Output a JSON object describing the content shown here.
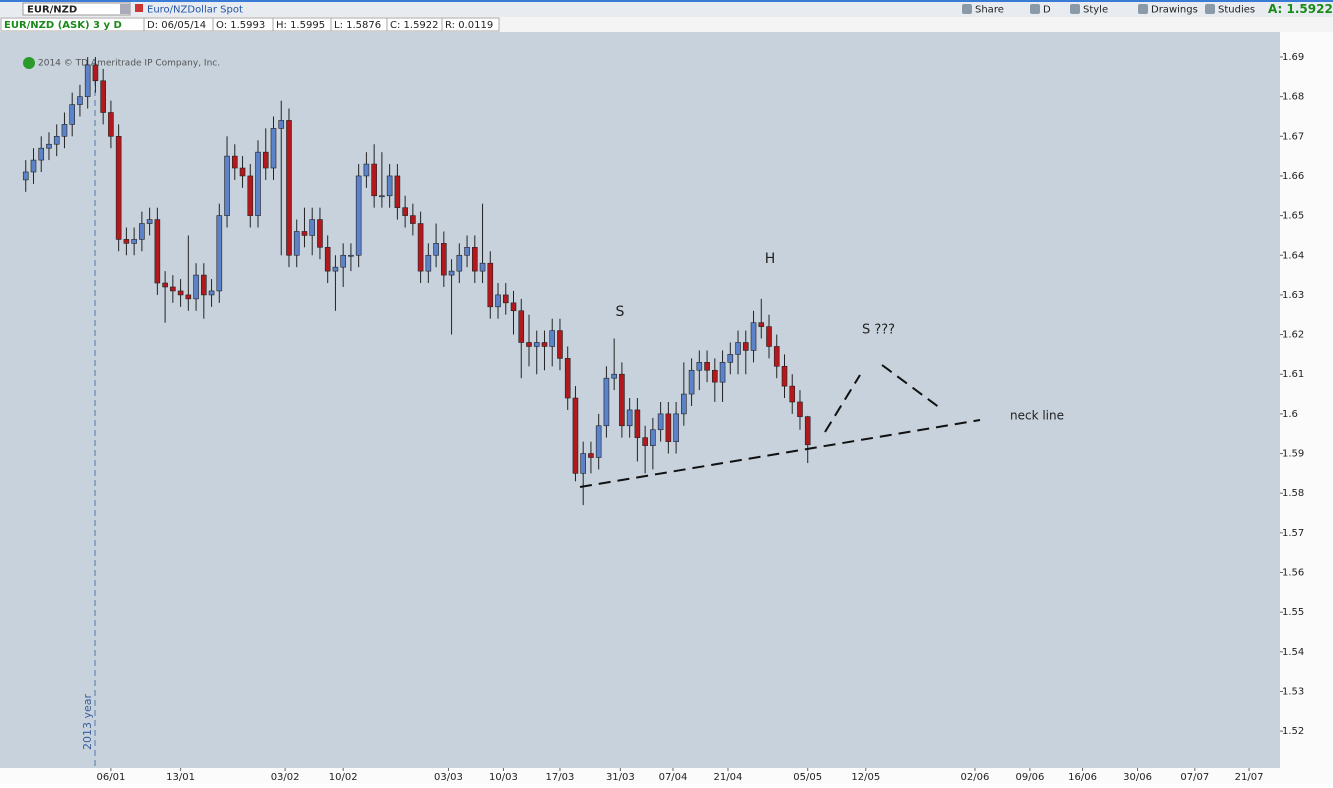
{
  "toolbar": {
    "symbol": "EUR/NZD",
    "description": "Euro/NZDollar Spot",
    "buttons": [
      "Share",
      "D",
      "Style",
      "Drawings",
      "Studies"
    ],
    "ask": "A: 1.5922"
  },
  "info_bar": [
    "EUR/NZD (ASK) 3 y D",
    "D: 06/05/14",
    "O: 1.5993",
    "H: 1.5995",
    "L: 1.5876",
    "C: 1.5922",
    "R: 0.0119"
  ],
  "copyright": "2014 © TD Ameritrade IP Company, Inc.",
  "chart_data": {
    "type": "candlestick",
    "up_color": "#5c82c9",
    "down_color": "#b3191c",
    "open": [
      1.659,
      1.661,
      1.664,
      1.667,
      1.668,
      1.67,
      1.673,
      1.678,
      1.68,
      1.688,
      1.684,
      1.676,
      1.67,
      1.644,
      1.643,
      1.644,
      1.648,
      1.649,
      1.633,
      1.632,
      1.631,
      1.63,
      1.629,
      1.635,
      1.63,
      1.631,
      1.65,
      1.665,
      1.662,
      1.66,
      1.65,
      1.666,
      1.662,
      1.672,
      1.674,
      1.64,
      1.646,
      1.645,
      1.649,
      1.642,
      1.636,
      1.637,
      1.64,
      1.64,
      1.66,
      1.663,
      1.655,
      1.655,
      1.66,
      1.652,
      1.65,
      1.648,
      1.636,
      1.64,
      1.643,
      1.635,
      1.636,
      1.64,
      1.642,
      1.636,
      1.638,
      1.627,
      1.63,
      1.628,
      1.626,
      1.618,
      1.617,
      1.618,
      1.617,
      1.621,
      1.614,
      1.604,
      1.585,
      1.59,
      1.589,
      1.597,
      1.609,
      1.61,
      1.597,
      1.601,
      1.594,
      1.592,
      1.596,
      1.6,
      1.593,
      1.6,
      1.605,
      1.611,
      1.613,
      1.611,
      1.608,
      1.613,
      1.615,
      1.618,
      1.616,
      1.623,
      1.622,
      1.617,
      1.612,
      1.607,
      1.603,
      1.5993
    ],
    "high": [
      1.664,
      1.667,
      1.67,
      1.671,
      1.673,
      1.676,
      1.681,
      1.683,
      1.69,
      1.69,
      1.687,
      1.679,
      1.673,
      1.647,
      1.647,
      1.651,
      1.652,
      1.652,
      1.636,
      1.635,
      1.634,
      1.645,
      1.638,
      1.638,
      1.634,
      1.653,
      1.67,
      1.668,
      1.665,
      1.663,
      1.669,
      1.672,
      1.675,
      1.679,
      1.677,
      1.649,
      1.652,
      1.652,
      1.652,
      1.645,
      1.64,
      1.643,
      1.643,
      1.663,
      1.666,
      1.668,
      1.666,
      1.663,
      1.663,
      1.655,
      1.653,
      1.651,
      1.643,
      1.648,
      1.646,
      1.639,
      1.643,
      1.645,
      1.645,
      1.653,
      1.641,
      1.633,
      1.633,
      1.631,
      1.629,
      1.625,
      1.621,
      1.621,
      1.624,
      1.624,
      1.617,
      1.607,
      1.593,
      1.593,
      1.6,
      1.612,
      1.619,
      1.613,
      1.604,
      1.604,
      1.597,
      1.599,
      1.603,
      1.603,
      1.603,
      1.613,
      1.614,
      1.616,
      1.616,
      1.614,
      1.616,
      1.618,
      1.621,
      1.621,
      1.626,
      1.629,
      1.625,
      1.62,
      1.615,
      1.61,
      1.606,
      1.5995
    ],
    "low": [
      1.656,
      1.658,
      1.661,
      1.664,
      1.665,
      1.667,
      1.67,
      1.675,
      1.677,
      1.681,
      1.673,
      1.667,
      1.641,
      1.64,
      1.64,
      1.641,
      1.645,
      1.63,
      1.623,
      1.628,
      1.627,
      1.626,
      1.626,
      1.624,
      1.627,
      1.628,
      1.647,
      1.659,
      1.657,
      1.647,
      1.647,
      1.659,
      1.659,
      1.64,
      1.637,
      1.637,
      1.642,
      1.64,
      1.639,
      1.633,
      1.626,
      1.632,
      1.636,
      1.637,
      1.657,
      1.652,
      1.652,
      1.652,
      1.649,
      1.647,
      1.645,
      1.633,
      1.633,
      1.637,
      1.632,
      1.62,
      1.633,
      1.637,
      1.633,
      1.633,
      1.624,
      1.624,
      1.625,
      1.62,
      1.609,
      1.612,
      1.61,
      1.611,
      1.612,
      1.611,
      1.601,
      1.583,
      1.577,
      1.585,
      1.586,
      1.594,
      1.606,
      1.594,
      1.594,
      1.588,
      1.585,
      1.586,
      1.593,
      1.59,
      1.59,
      1.597,
      1.602,
      1.606,
      1.608,
      1.603,
      1.603,
      1.61,
      1.61,
      1.61,
      1.613,
      1.619,
      1.614,
      1.609,
      1.604,
      1.6,
      1.596,
      1.5876
    ],
    "close": [
      1.661,
      1.664,
      1.667,
      1.668,
      1.67,
      1.673,
      1.678,
      1.68,
      1.688,
      1.684,
      1.676,
      1.67,
      1.644,
      1.643,
      1.644,
      1.648,
      1.649,
      1.633,
      1.632,
      1.631,
      1.63,
      1.629,
      1.635,
      1.63,
      1.631,
      1.65,
      1.665,
      1.662,
      1.66,
      1.65,
      1.666,
      1.662,
      1.672,
      1.674,
      1.64,
      1.646,
      1.645,
      1.649,
      1.642,
      1.636,
      1.637,
      1.64,
      1.64,
      1.66,
      1.663,
      1.655,
      1.655,
      1.66,
      1.652,
      1.65,
      1.648,
      1.636,
      1.64,
      1.643,
      1.635,
      1.636,
      1.64,
      1.642,
      1.636,
      1.638,
      1.627,
      1.63,
      1.628,
      1.626,
      1.618,
      1.617,
      1.618,
      1.617,
      1.621,
      1.614,
      1.604,
      1.585,
      1.59,
      1.589,
      1.597,
      1.609,
      1.61,
      1.597,
      1.601,
      1.594,
      1.592,
      1.596,
      1.6,
      1.593,
      1.6,
      1.605,
      1.611,
      1.613,
      1.611,
      1.608,
      1.613,
      1.615,
      1.618,
      1.616,
      1.623,
      1.622,
      1.617,
      1.612,
      1.607,
      1.603,
      1.5993,
      1.5922
    ],
    "xlim": [
      -1,
      162
    ],
    "xticks": [
      {
        "value": 11,
        "label": "06/01"
      },
      {
        "value": 20,
        "label": "13/01"
      },
      {
        "value": 33.5,
        "label": "03/02"
      },
      {
        "value": 41,
        "label": "10/02"
      },
      {
        "value": 54.6,
        "label": "03/03"
      },
      {
        "value": 61.7,
        "label": "10/03"
      },
      {
        "value": 69,
        "label": "17/03"
      },
      {
        "value": 76.8,
        "label": "31/03"
      },
      {
        "value": 83.6,
        "label": "07/04"
      },
      {
        "value": 90.7,
        "label": "21/04"
      },
      {
        "value": 101,
        "label": "05/05"
      },
      {
        "value": 108.5,
        "label": "12/05"
      },
      {
        "value": 122.6,
        "label": "02/06"
      },
      {
        "value": 129.7,
        "label": "09/06"
      },
      {
        "value": 136.5,
        "label": "16/06"
      },
      {
        "value": 143.6,
        "label": "30/06"
      },
      {
        "value": 151,
        "label": "07/07"
      },
      {
        "value": 158,
        "label": "21/07"
      }
    ],
    "ylim": [
      1.5107,
      1.6963
    ],
    "yticks": [
      1.52,
      1.53,
      1.54,
      1.55,
      1.56,
      1.57,
      1.58,
      1.59,
      1.6,
      1.61,
      1.62,
      1.63,
      1.64,
      1.65,
      1.66,
      1.67,
      1.68,
      1.69
    ],
    "annotations": [
      "S",
      "H",
      "S ???",
      "neck line",
      "2013 year"
    ]
  }
}
